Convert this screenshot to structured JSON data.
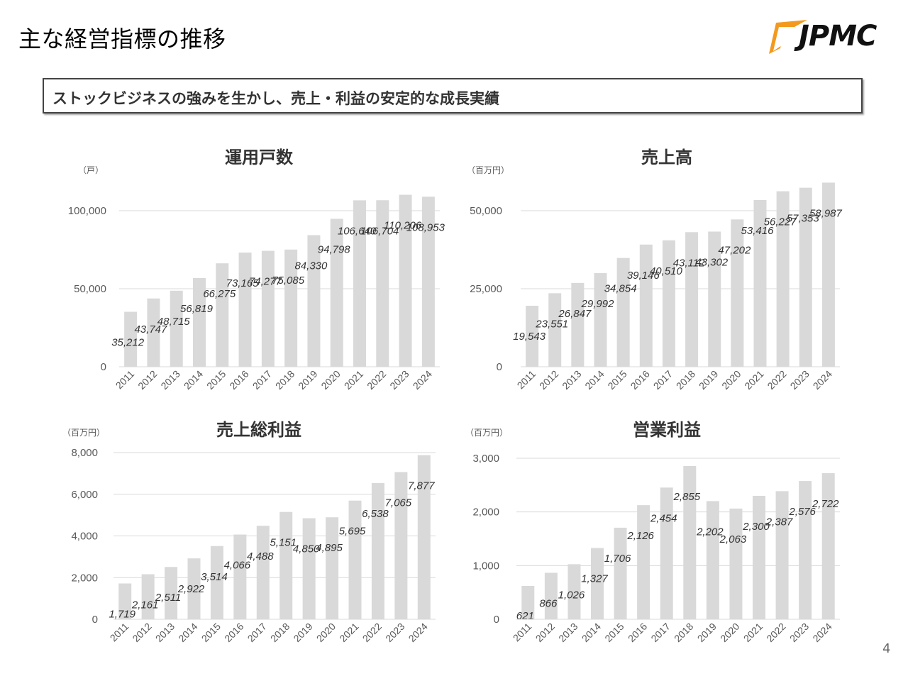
{
  "page": {
    "title": "主な経営指標の推移",
    "subtitle": "ストックビジネスの強みを生かし、売上・利益の安定的な成長実績",
    "page_number": "4"
  },
  "logo": {
    "text": "JPMC",
    "colors": {
      "orange": "#F39A1E",
      "dark": "#111111"
    }
  },
  "colors": {
    "bar": "#D9D9D9",
    "grid": "#D9D9D9",
    "label": "#333333",
    "tick": "#595959"
  },
  "chart_data": [
    {
      "type": "bar",
      "title": "運用戸数",
      "unit": "（戸）",
      "categories": [
        "2011",
        "2012",
        "2013",
        "2014",
        "2015",
        "2016",
        "2017",
        "2018",
        "2019",
        "2020",
        "2021",
        "2022",
        "2023",
        "2024"
      ],
      "values": [
        35212,
        43747,
        48715,
        56819,
        66275,
        73165,
        74277,
        75085,
        84330,
        94798,
        106640,
        106704,
        110206,
        108953
      ],
      "labels": [
        "35,212",
        "43,747",
        "48,715",
        "56,819",
        "66,275",
        "73,165",
        "74,277",
        "75,085",
        "84,330",
        "94,798",
        "106,640",
        "106,704",
        "110,206",
        "108,953"
      ],
      "ylim": [
        0,
        100000
      ],
      "yticks": [
        0,
        50000,
        100000
      ],
      "ytick_labels": [
        "0",
        "50,000",
        "100,000"
      ],
      "grid": true
    },
    {
      "type": "bar",
      "title": "売上高",
      "unit": "（百万円）",
      "categories": [
        "2011",
        "2012",
        "2013",
        "2014",
        "2015",
        "2016",
        "2017",
        "2018",
        "2019",
        "2020",
        "2021",
        "2022",
        "2023",
        "2024"
      ],
      "values": [
        19543,
        23551,
        26847,
        29992,
        34854,
        39146,
        40510,
        43112,
        43302,
        47202,
        53416,
        56227,
        57353,
        58987
      ],
      "labels": [
        "19,543",
        "23,551",
        "26,847",
        "29,992",
        "34,854",
        "39,146",
        "40,510",
        "43,112",
        "43,302",
        "47,202",
        "53,416",
        "56,227",
        "57,353",
        "58,987"
      ],
      "ylim": [
        0,
        50000
      ],
      "yticks": [
        0,
        25000,
        50000
      ],
      "ytick_labels": [
        "0",
        "25,000",
        "50,000"
      ],
      "grid": true
    },
    {
      "type": "bar",
      "title": "売上総利益",
      "unit": "（百万円）",
      "categories": [
        "2011",
        "2012",
        "2013",
        "2014",
        "2015",
        "2016",
        "2017",
        "2018",
        "2019",
        "2020",
        "2021",
        "2022",
        "2023",
        "2024"
      ],
      "values": [
        1719,
        2161,
        2511,
        2922,
        3514,
        4066,
        4488,
        5151,
        4850,
        4895,
        5695,
        6538,
        7065,
        7877
      ],
      "labels": [
        "1,719",
        "2,161",
        "2,511",
        "2,922",
        "3,514",
        "4,066",
        "4,488",
        "5,151",
        "4,850",
        "4,895",
        "5,695",
        "6,538",
        "7,065",
        "7,877"
      ],
      "ylim": [
        0,
        8000
      ],
      "yticks": [
        0,
        2000,
        4000,
        6000,
        8000
      ],
      "ytick_labels": [
        "0",
        "2,000",
        "4,000",
        "6,000",
        "8,000"
      ],
      "grid": true
    },
    {
      "type": "bar",
      "title": "営業利益",
      "unit": "（百万円）",
      "categories": [
        "2011",
        "2012",
        "2013",
        "2014",
        "2015",
        "2016",
        "2017",
        "2018",
        "2019",
        "2020",
        "2021",
        "2022",
        "2023",
        "2024"
      ],
      "values": [
        621,
        866,
        1026,
        1327,
        1706,
        2126,
        2454,
        2855,
        2202,
        2063,
        2300,
        2387,
        2576,
        2722
      ],
      "labels": [
        "621",
        "866",
        "1,026",
        "1,327",
        "1,706",
        "2,126",
        "2,454",
        "2,855",
        "2,202",
        "2,063",
        "2,300",
        "2,387",
        "2,576",
        "2,722"
      ],
      "ylim": [
        0,
        3000
      ],
      "yticks": [
        0,
        1000,
        2000,
        3000
      ],
      "ytick_labels": [
        "0",
        "1,000",
        "2,000",
        "3,000"
      ],
      "grid": true
    }
  ]
}
